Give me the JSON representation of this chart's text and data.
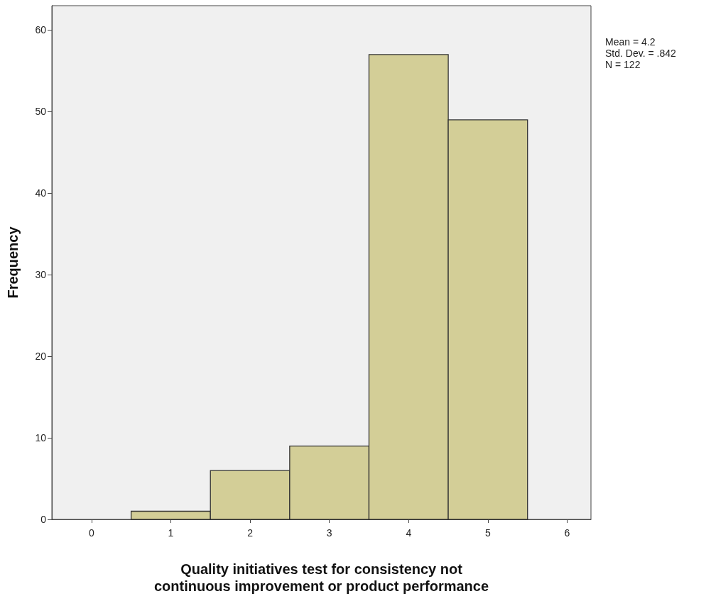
{
  "chart_data": {
    "type": "histogram",
    "xlabel": "Quality initiatives test for consistency not continuous improvement or product performance",
    "ylabel": "Frequency",
    "bins": [
      0.5,
      1.5,
      2.5,
      3.5,
      4.5,
      5.5
    ],
    "values": [
      1,
      6,
      9,
      57,
      49
    ],
    "color": "#d3ce97",
    "xlim": [
      -0.5,
      6.3
    ],
    "xticks": [
      0,
      1,
      2,
      3,
      4,
      5,
      6
    ],
    "ylim": [
      0,
      63
    ],
    "yticks": [
      0,
      10,
      20,
      30,
      40,
      50,
      60
    ],
    "grid": false,
    "annotations": [
      "Mean = 4.2",
      "Std. Dev. = .842",
      "N = 122"
    ]
  }
}
